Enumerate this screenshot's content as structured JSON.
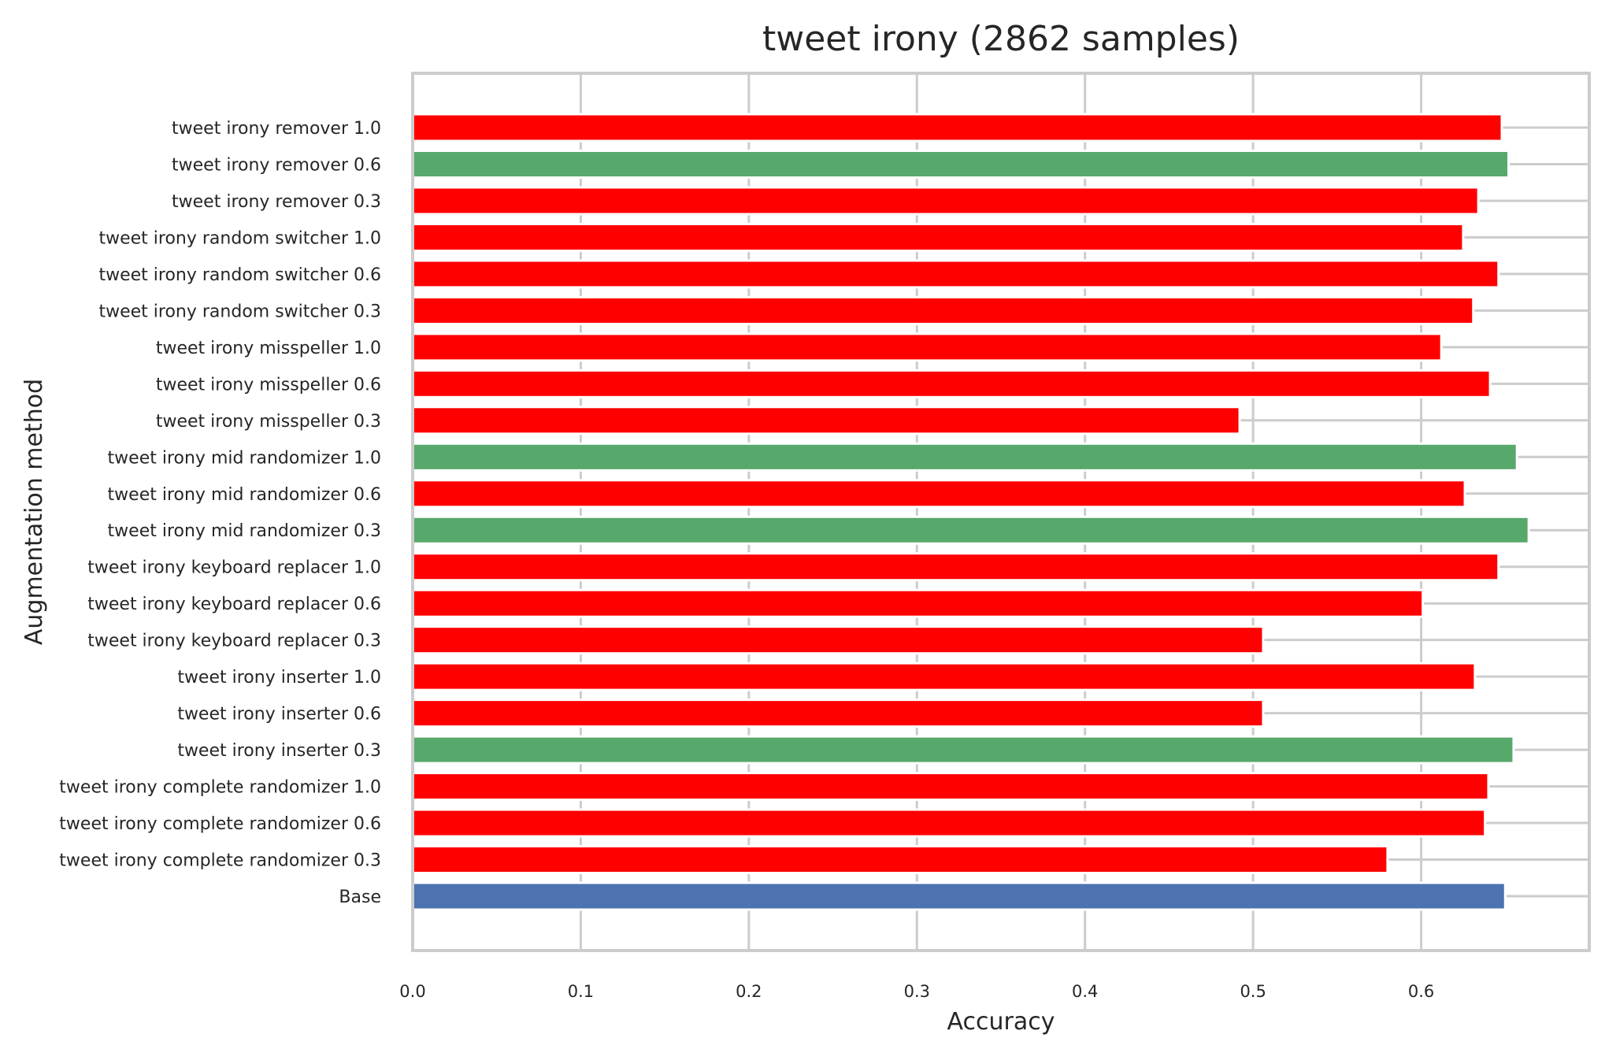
{
  "chart_data": {
    "type": "bar",
    "orientation": "horizontal",
    "title": "tweet irony (2862 samples)",
    "xlabel": "Accuracy",
    "ylabel": "Augmentation method",
    "xlim": [
      0.0,
      0.7
    ],
    "x_ticks": [
      "0.0",
      "0.1",
      "0.2",
      "0.3",
      "0.4",
      "0.5",
      "0.6"
    ],
    "grid": true,
    "colors": {
      "better": "#57a86b",
      "worse": "#ff0000",
      "base": "#4c72b0",
      "grid": "#cccccc"
    },
    "categories": [
      "tweet irony remover 1.0",
      "tweet irony remover 0.6",
      "tweet irony remover 0.3",
      "tweet irony random switcher 1.0",
      "tweet irony random switcher 0.6",
      "tweet irony random switcher 0.3",
      "tweet irony misspeller 1.0",
      "tweet irony misspeller 0.6",
      "tweet irony misspeller 0.3",
      "tweet irony mid randomizer 1.0",
      "tweet irony mid randomizer 0.6",
      "tweet irony mid randomizer 0.3",
      "tweet irony keyboard replacer 1.0",
      "tweet irony keyboard replacer 0.6",
      "tweet irony keyboard replacer 0.3",
      "tweet irony inserter 1.0",
      "tweet irony inserter 0.6",
      "tweet irony inserter 0.3",
      "tweet irony complete randomizer 1.0",
      "tweet irony complete randomizer 0.6",
      "tweet irony complete randomizer 0.3",
      "Base"
    ],
    "values": [
      0.648,
      0.652,
      0.634,
      0.625,
      0.646,
      0.631,
      0.612,
      0.641,
      0.492,
      0.657,
      0.626,
      0.664,
      0.646,
      0.601,
      0.506,
      0.632,
      0.506,
      0.655,
      0.64,
      0.638,
      0.58,
      0.65
    ],
    "bar_colors": [
      "worse",
      "better",
      "worse",
      "worse",
      "worse",
      "worse",
      "worse",
      "worse",
      "worse",
      "better",
      "worse",
      "better",
      "worse",
      "worse",
      "worse",
      "worse",
      "worse",
      "better",
      "worse",
      "worse",
      "worse",
      "base"
    ]
  }
}
